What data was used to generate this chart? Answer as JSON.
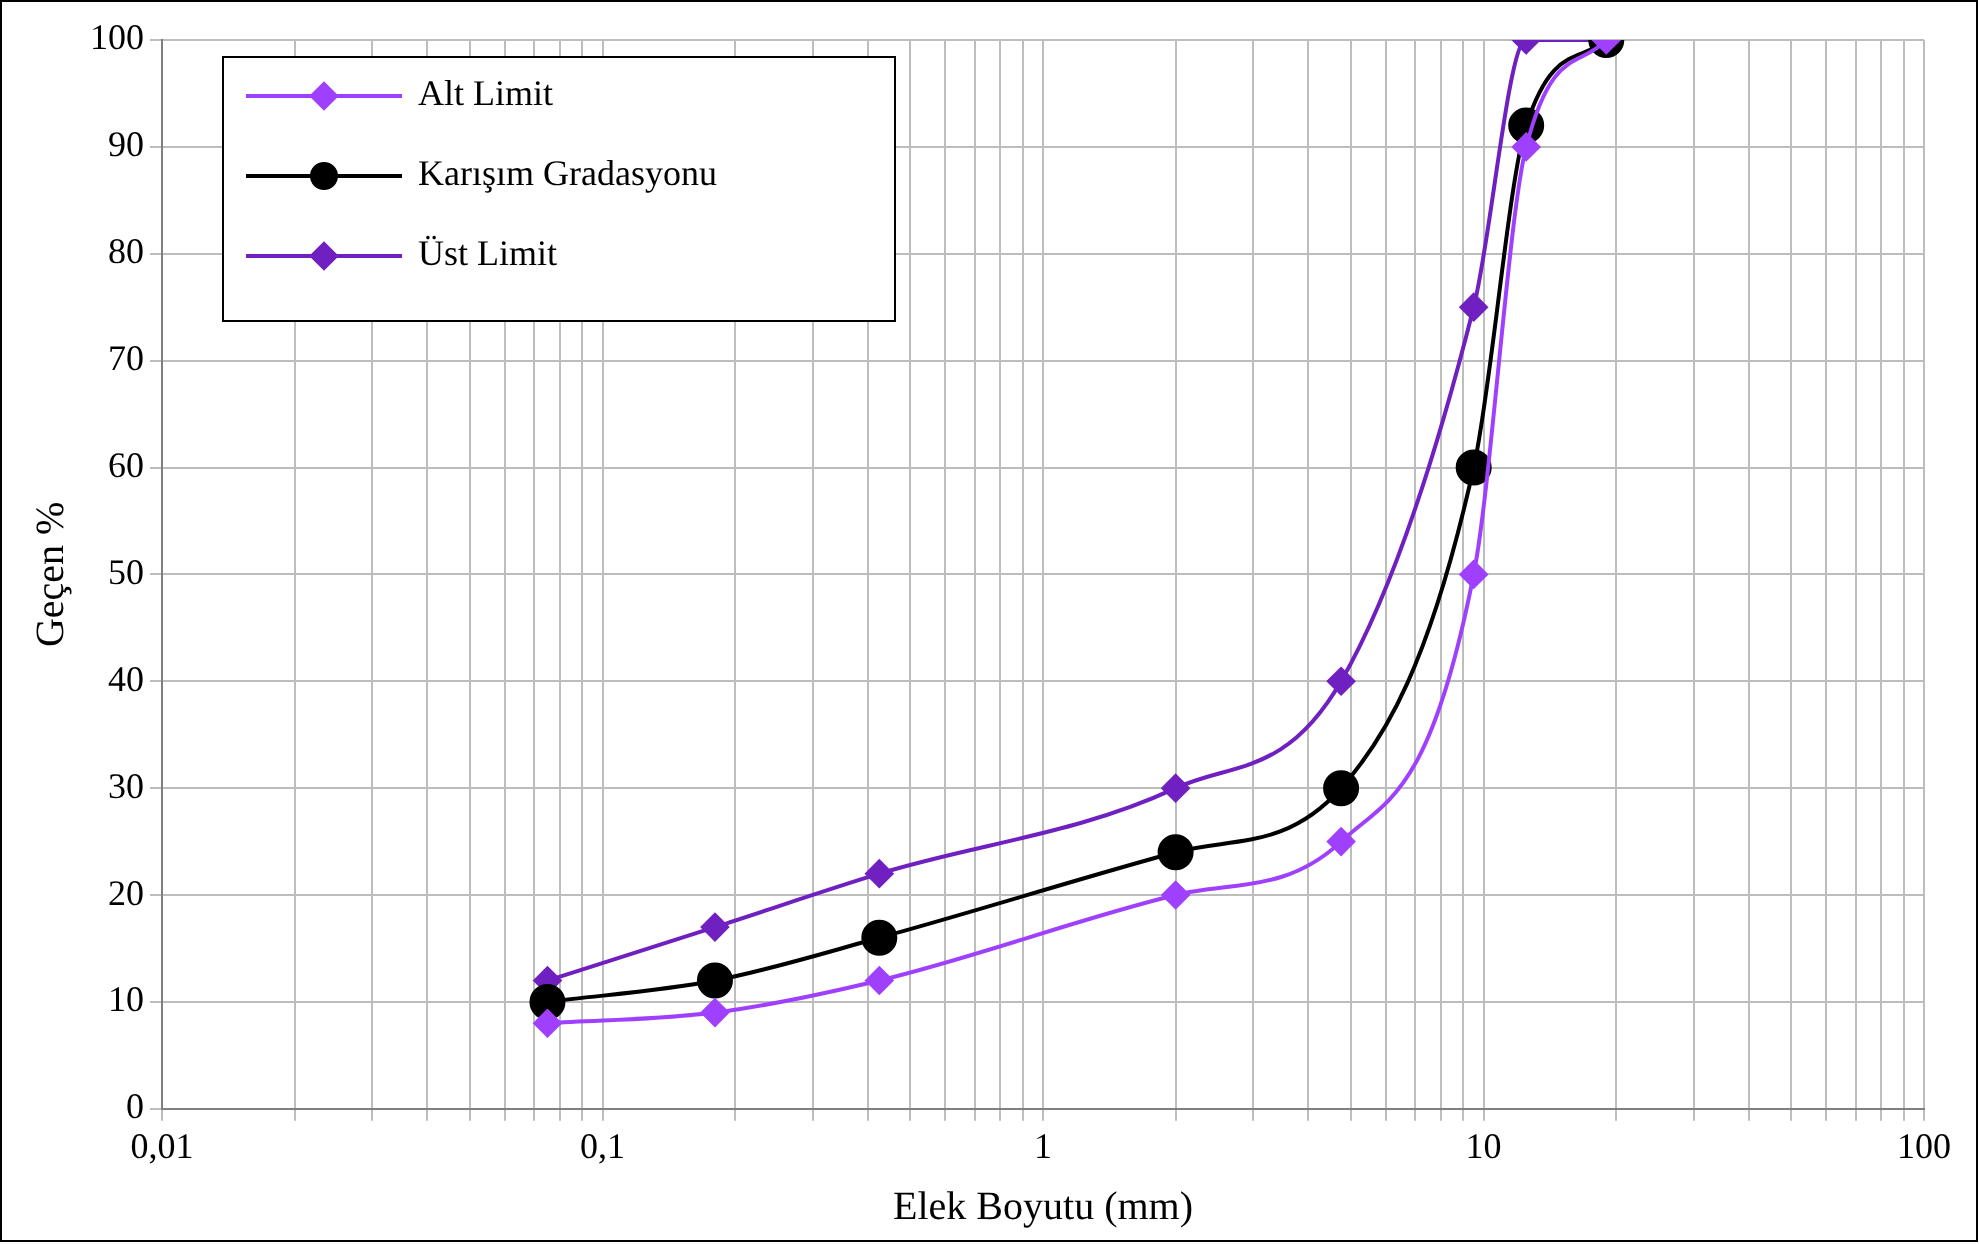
{
  "chart_data": {
    "type": "line",
    "xlabel": "Elek Boyutu (mm)",
    "ylabel": "Geçen %",
    "x": [
      0.075,
      0.18,
      0.425,
      2,
      4.75,
      9.5,
      12.5,
      19
    ],
    "series": [
      {
        "name": "Alt Limit",
        "color": "#a040ff",
        "marker": "diamond",
        "values": [
          8,
          9,
          12,
          20,
          25,
          50,
          90,
          100
        ]
      },
      {
        "name": "Karışım Gradasyonu",
        "color": "#000000",
        "marker": "circle",
        "values": [
          10,
          12,
          16,
          24,
          30,
          60,
          92,
          100
        ]
      },
      {
        "name": "Üst Limit",
        "color": "#7020c0",
        "marker": "diamond",
        "values": [
          12,
          17,
          22,
          30,
          40,
          75,
          100,
          100
        ]
      }
    ],
    "log": "x",
    "xlim": [
      0.01,
      100
    ],
    "xticks": [
      {
        "value": 0.01,
        "label": "0,01"
      },
      {
        "value": 0.02,
        "label": null
      },
      {
        "value": 0.03,
        "label": null
      },
      {
        "value": 0.04,
        "label": null
      },
      {
        "value": 0.05,
        "label": null
      },
      {
        "value": 0.06,
        "label": null
      },
      {
        "value": 0.07,
        "label": null
      },
      {
        "value": 0.08,
        "label": null
      },
      {
        "value": 0.09,
        "label": null
      },
      {
        "value": 0.1,
        "label": "0,1"
      },
      {
        "value": 0.2,
        "label": null
      },
      {
        "value": 0.3,
        "label": null
      },
      {
        "value": 0.4,
        "label": null
      },
      {
        "value": 0.5,
        "label": null
      },
      {
        "value": 0.6,
        "label": null
      },
      {
        "value": 0.7,
        "label": null
      },
      {
        "value": 0.8,
        "label": null
      },
      {
        "value": 0.9,
        "label": null
      },
      {
        "value": 1,
        "label": "1"
      },
      {
        "value": 2,
        "label": null
      },
      {
        "value": 3,
        "label": null
      },
      {
        "value": 4,
        "label": null
      },
      {
        "value": 5,
        "label": null
      },
      {
        "value": 6,
        "label": null
      },
      {
        "value": 7,
        "label": null
      },
      {
        "value": 8,
        "label": null
      },
      {
        "value": 9,
        "label": null
      },
      {
        "value": 10,
        "label": "10"
      },
      {
        "value": 20,
        "label": null
      },
      {
        "value": 30,
        "label": null
      },
      {
        "value": 40,
        "label": null
      },
      {
        "value": 50,
        "label": null
      },
      {
        "value": 60,
        "label": null
      },
      {
        "value": 70,
        "label": null
      },
      {
        "value": 80,
        "label": null
      },
      {
        "value": 90,
        "label": null
      },
      {
        "value": 100,
        "label": "100"
      }
    ],
    "ylim": [
      0,
      100
    ],
    "yticks": [
      0,
      10,
      20,
      30,
      40,
      50,
      60,
      70,
      80,
      90,
      100
    ],
    "grid": true,
    "legend": "top left",
    "line_style": "solid"
  }
}
